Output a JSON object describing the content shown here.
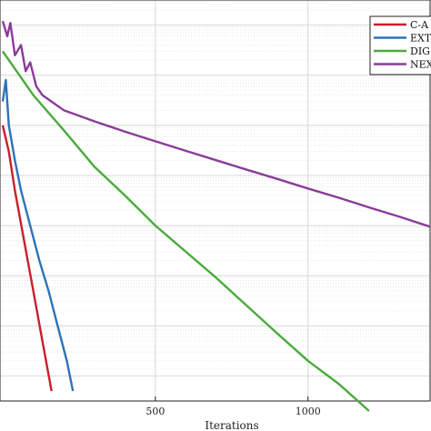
{
  "chart_data": {
    "type": "line",
    "xlabel": "Iterations",
    "ylabel": "",
    "title": "",
    "xlim": [
      0,
      1400
    ],
    "x_ticks": [
      500,
      1000
    ],
    "log_y": true,
    "grid": true,
    "legend_position": "top-right",
    "series": [
      {
        "name": "C-A",
        "color": "#c8202a",
        "points": [
          [
            0,
            1.0
          ],
          [
            20,
            0.3
          ],
          [
            40,
            0.05
          ],
          [
            70,
            0.005
          ],
          [
            100,
            0.0005
          ],
          [
            130,
            5e-05
          ],
          [
            160,
            5e-06
          ]
        ]
      },
      {
        "name": "EXT",
        "color": "#2e72b8",
        "points": [
          [
            0,
            3.0
          ],
          [
            10,
            8.0
          ],
          [
            20,
            1.0
          ],
          [
            40,
            0.2
          ],
          [
            60,
            0.05
          ],
          [
            90,
            0.01
          ],
          [
            120,
            0.002
          ],
          [
            150,
            0.0005
          ],
          [
            180,
            0.0001
          ],
          [
            210,
            2e-05
          ],
          [
            230,
            5e-06
          ]
        ]
      },
      {
        "name": "DIG",
        "color": "#4aaa3c",
        "points": [
          [
            0,
            30.0
          ],
          [
            100,
            4.0
          ],
          [
            200,
            0.8
          ],
          [
            300,
            0.15
          ],
          [
            400,
            0.04
          ],
          [
            500,
            0.01
          ],
          [
            600,
            0.003
          ],
          [
            700,
            0.0009
          ],
          [
            800,
            0.00025
          ],
          [
            900,
            7e-05
          ],
          [
            1000,
            2e-05
          ],
          [
            1100,
            7e-06
          ],
          [
            1200,
            2e-06
          ]
        ]
      },
      {
        "name": "NEX",
        "color": "#8a3c9a",
        "points": [
          [
            0,
            120.0
          ],
          [
            15,
            60.0
          ],
          [
            25,
            110.0
          ],
          [
            40,
            25.0
          ],
          [
            60,
            40.0
          ],
          [
            75,
            12.0
          ],
          [
            90,
            18.0
          ],
          [
            110,
            6.0
          ],
          [
            130,
            4.0
          ],
          [
            200,
            2.0
          ],
          [
            300,
            1.2
          ],
          [
            400,
            0.75
          ],
          [
            500,
            0.48
          ],
          [
            600,
            0.31
          ],
          [
            700,
            0.2
          ],
          [
            800,
            0.13
          ],
          [
            900,
            0.085
          ],
          [
            1000,
            0.055
          ],
          [
            1100,
            0.036
          ],
          [
            1200,
            0.023
          ],
          [
            1300,
            0.015
          ],
          [
            1400,
            0.0095
          ]
        ]
      }
    ]
  }
}
